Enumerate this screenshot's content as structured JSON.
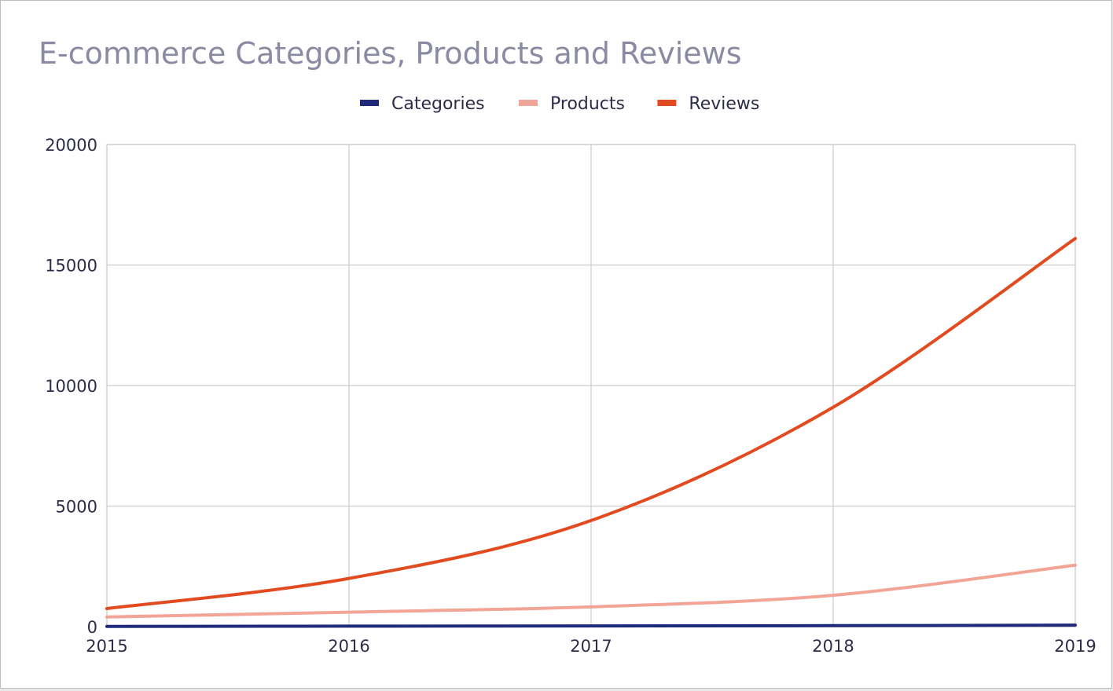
{
  "chart_data": {
    "type": "line",
    "title": "E-commerce Categories, Products and Reviews",
    "xlabel": "",
    "ylabel": "",
    "x": [
      2015,
      2016,
      2017,
      2018,
      2019
    ],
    "x_tick_labels": [
      "2015",
      "2016",
      "2017",
      "2018",
      "2019"
    ],
    "y_tick_labels": [
      "0",
      "5000",
      "10000",
      "15000",
      "20000"
    ],
    "ylim": [
      0,
      20000
    ],
    "xlim": [
      2015,
      2019
    ],
    "grid": true,
    "legend_position": "top-center",
    "series": [
      {
        "name": "Categories",
        "color": "#1f2a7a",
        "values": [
          10,
          20,
          30,
          40,
          60
        ]
      },
      {
        "name": "Products",
        "color": "#f2a597",
        "values": [
          400,
          600,
          820,
          1300,
          2550
        ]
      },
      {
        "name": "Reviews",
        "color": "#e24a1f",
        "values": [
          750,
          2000,
          4400,
          9100,
          16100
        ]
      }
    ]
  }
}
